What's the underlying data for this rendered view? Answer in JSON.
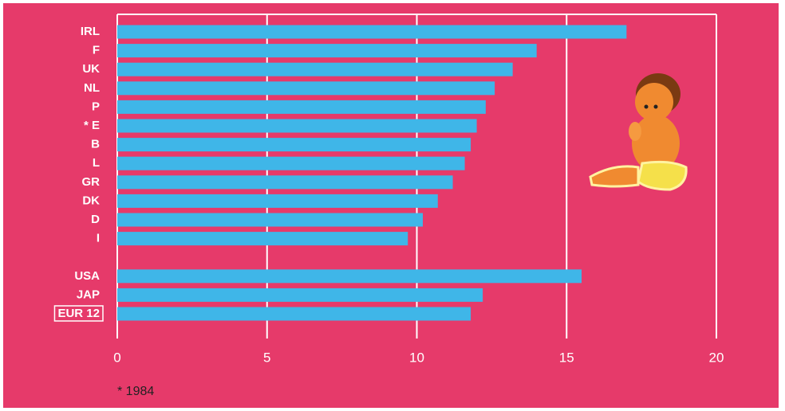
{
  "chart_data": {
    "type": "hbar",
    "categories": [
      "IRL",
      "F",
      "UK",
      "NL",
      "P",
      "* E",
      "B",
      "L",
      "GR",
      "DK",
      "D",
      "I",
      null,
      "USA",
      "JAP",
      "EUR 12"
    ],
    "values": [
      17.0,
      14.0,
      13.2,
      12.6,
      12.3,
      12.0,
      11.8,
      11.6,
      11.2,
      10.7,
      10.2,
      9.7,
      null,
      15.5,
      12.2,
      11.8
    ],
    "color": "#3fb6e8",
    "xlim": [
      0,
      20
    ],
    "xticks": [
      0,
      5,
      10,
      15,
      20
    ],
    "grid": true,
    "footnote": "* 1984"
  }
}
